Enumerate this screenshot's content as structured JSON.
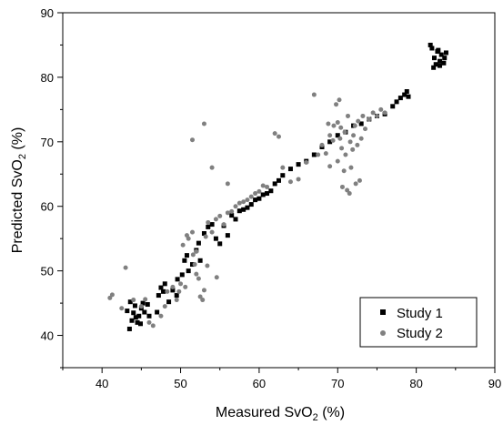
{
  "chart_data": {
    "type": "scatter",
    "title": "",
    "xlabel": "Measured SvO",
    "xlabel_sub": "2",
    "xlabel_suffix": " (%)",
    "ylabel": "Predicted SvO",
    "ylabel_sub": "2",
    "ylabel_suffix": " (%)",
    "xlim": [
      35,
      90
    ],
    "ylim": [
      35,
      90
    ],
    "xticks": [
      40,
      50,
      60,
      70,
      80,
      90
    ],
    "yticks": [
      40,
      50,
      60,
      70,
      80,
      90
    ],
    "grid": false,
    "legend": "bottom-right",
    "series": [
      {
        "name": "Study 1",
        "color": "#000000",
        "marker": "square",
        "points": [
          [
            43.5,
            41.0
          ],
          [
            43.8,
            42.3
          ],
          [
            44.0,
            43.5
          ],
          [
            44.2,
            44.6
          ],
          [
            44.5,
            42.0
          ],
          [
            44.7,
            43.0
          ],
          [
            45.0,
            44.2
          ],
          [
            45.2,
            45.0
          ],
          [
            43.2,
            43.8
          ],
          [
            44.9,
            41.8
          ],
          [
            45.4,
            43.6
          ],
          [
            43.6,
            45.2
          ],
          [
            44.3,
            42.8
          ],
          [
            45.8,
            44.8
          ],
          [
            46.0,
            43.0
          ],
          [
            47.0,
            43.6
          ],
          [
            47.2,
            46.2
          ],
          [
            47.5,
            47.4
          ],
          [
            47.8,
            46.8
          ],
          [
            48.5,
            45.2
          ],
          [
            48.0,
            48.0
          ],
          [
            49.0,
            47.0
          ],
          [
            49.5,
            46.2
          ],
          [
            49.6,
            48.7
          ],
          [
            50.2,
            49.4
          ],
          [
            50.5,
            51.6
          ],
          [
            50.8,
            52.4
          ],
          [
            51.0,
            50.0
          ],
          [
            51.5,
            51.0
          ],
          [
            52.0,
            53.2
          ],
          [
            52.3,
            54.3
          ],
          [
            52.5,
            51.6
          ],
          [
            53.0,
            55.8
          ],
          [
            53.5,
            56.8
          ],
          [
            54.0,
            57.2
          ],
          [
            54.5,
            55.0
          ],
          [
            55.0,
            54.2
          ],
          [
            55.5,
            57.0
          ],
          [
            56.0,
            55.5
          ],
          [
            56.5,
            58.6
          ],
          [
            57.0,
            58.0
          ],
          [
            57.5,
            59.3
          ],
          [
            58.0,
            59.5
          ],
          [
            58.5,
            59.8
          ],
          [
            59.0,
            60.3
          ],
          [
            59.5,
            61.0
          ],
          [
            60.0,
            61.2
          ],
          [
            60.5,
            61.8
          ],
          [
            61.0,
            62.0
          ],
          [
            61.5,
            62.4
          ],
          [
            62.0,
            63.5
          ],
          [
            62.5,
            64.0
          ],
          [
            63.0,
            64.8
          ],
          [
            64.0,
            65.8
          ],
          [
            65.0,
            66.5
          ],
          [
            66.0,
            67.0
          ],
          [
            67.0,
            68.0
          ],
          [
            68.0,
            69.2
          ],
          [
            69.0,
            70.0
          ],
          [
            70.0,
            71.0
          ],
          [
            71.0,
            71.5
          ],
          [
            72.0,
            72.5
          ],
          [
            73.0,
            72.8
          ],
          [
            74.0,
            73.5
          ],
          [
            75.0,
            74.0
          ],
          [
            76.0,
            74.3
          ],
          [
            77.0,
            75.5
          ],
          [
            77.5,
            76.2
          ],
          [
            78.0,
            76.8
          ],
          [
            78.5,
            77.3
          ],
          [
            78.8,
            77.8
          ],
          [
            79.0,
            77.0
          ],
          [
            82.0,
            84.5
          ],
          [
            82.3,
            83.0
          ],
          [
            82.5,
            82.0
          ],
          [
            82.7,
            84.0
          ],
          [
            83.0,
            82.5
          ],
          [
            83.2,
            83.5
          ],
          [
            83.5,
            82.2
          ],
          [
            83.8,
            83.8
          ],
          [
            82.2,
            81.5
          ],
          [
            83.0,
            81.8
          ],
          [
            82.8,
            84.2
          ],
          [
            83.6,
            83.0
          ],
          [
            81.8,
            85.0
          ]
        ]
      },
      {
        "name": "Study 2",
        "color": "#808080",
        "marker": "circle",
        "points": [
          [
            41.0,
            45.8
          ],
          [
            41.3,
            46.3
          ],
          [
            42.5,
            44.2
          ],
          [
            43.0,
            50.5
          ],
          [
            44.0,
            45.5
          ],
          [
            45.0,
            44.5
          ],
          [
            45.5,
            45.6
          ],
          [
            46.0,
            42.0
          ],
          [
            46.5,
            41.5
          ],
          [
            47.5,
            43.0
          ],
          [
            48.0,
            44.5
          ],
          [
            48.3,
            46.8
          ],
          [
            49.0,
            47.5
          ],
          [
            49.5,
            45.5
          ],
          [
            50.0,
            48.0
          ],
          [
            50.3,
            54.0
          ],
          [
            50.8,
            55.5
          ],
          [
            51.0,
            55.0
          ],
          [
            51.5,
            56.0
          ],
          [
            51.6,
            52.5
          ],
          [
            52.0,
            53.0
          ],
          [
            52.3,
            48.8
          ],
          [
            52.5,
            46.0
          ],
          [
            52.8,
            45.5
          ],
          [
            53.0,
            47.0
          ],
          [
            53.2,
            55.3
          ],
          [
            53.5,
            57.5
          ],
          [
            54.0,
            56.0
          ],
          [
            54.5,
            58.0
          ],
          [
            55.0,
            58.5
          ],
          [
            55.5,
            57.2
          ],
          [
            56.0,
            59.0
          ],
          [
            56.5,
            59.2
          ],
          [
            57.0,
            60.0
          ],
          [
            57.5,
            60.5
          ],
          [
            58.0,
            60.7
          ],
          [
            58.5,
            61.0
          ],
          [
            59.0,
            61.5
          ],
          [
            59.5,
            62.0
          ],
          [
            60.0,
            62.3
          ],
          [
            60.5,
            63.2
          ],
          [
            61.0,
            63.0
          ],
          [
            62.0,
            71.3
          ],
          [
            62.5,
            70.8
          ],
          [
            53.0,
            72.8
          ],
          [
            51.5,
            70.3
          ],
          [
            54.0,
            66.0
          ],
          [
            56.0,
            63.5
          ],
          [
            63.0,
            66.0
          ],
          [
            64.0,
            63.8
          ],
          [
            65.0,
            64.2
          ],
          [
            66.0,
            66.8
          ],
          [
            67.0,
            77.3
          ],
          [
            67.5,
            68.0
          ],
          [
            68.0,
            69.5
          ],
          [
            68.5,
            68.2
          ],
          [
            69.0,
            71.0
          ],
          [
            69.5,
            72.5
          ],
          [
            70.0,
            73.0
          ],
          [
            70.3,
            70.5
          ],
          [
            70.5,
            69.0
          ],
          [
            70.8,
            65.5
          ],
          [
            71.0,
            68.0
          ],
          [
            71.3,
            74.0
          ],
          [
            71.5,
            62.0
          ],
          [
            71.7,
            66.0
          ],
          [
            72.0,
            71.0
          ],
          [
            72.2,
            72.5
          ],
          [
            72.5,
            69.5
          ],
          [
            72.8,
            64.0
          ],
          [
            73.0,
            70.5
          ],
          [
            73.5,
            72.0
          ],
          [
            74.0,
            73.5
          ],
          [
            74.5,
            74.5
          ],
          [
            75.0,
            74.0
          ],
          [
            75.5,
            75.0
          ],
          [
            76.0,
            74.5
          ],
          [
            69.8,
            75.8
          ],
          [
            70.2,
            76.5
          ],
          [
            69.0,
            66.2
          ],
          [
            70.6,
            63.0
          ],
          [
            71.2,
            62.5
          ],
          [
            72.3,
            63.5
          ],
          [
            70.0,
            67.0
          ],
          [
            71.6,
            70.0
          ],
          [
            69.4,
            70.2
          ],
          [
            70.9,
            71.5
          ],
          [
            72.6,
            73.2
          ],
          [
            68.8,
            72.8
          ],
          [
            71.9,
            68.8
          ],
          [
            70.4,
            72.2
          ],
          [
            73.2,
            74.0
          ],
          [
            52.0,
            49.5
          ],
          [
            51.8,
            51.0
          ],
          [
            50.6,
            47.5
          ],
          [
            49.8,
            46.8
          ],
          [
            54.6,
            49.0
          ],
          [
            53.4,
            50.8
          ]
        ]
      }
    ]
  }
}
